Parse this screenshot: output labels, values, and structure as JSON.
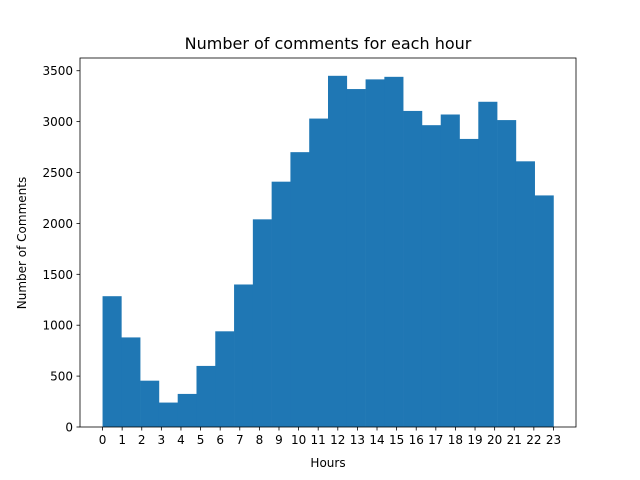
{
  "chart_data": {
    "type": "bar",
    "title": "Number of comments for each hour",
    "xlabel": "Hours",
    "ylabel": "Number of Comments",
    "xlim": [
      -1.15,
      24.15
    ],
    "ylim": [
      0,
      3625
    ],
    "xticks": [
      0,
      1,
      2,
      3,
      4,
      5,
      6,
      7,
      8,
      9,
      10,
      11,
      12,
      13,
      14,
      15,
      16,
      17,
      18,
      19,
      20,
      21,
      22,
      23
    ],
    "xtick_labels": [
      "0",
      "1",
      "2",
      "3",
      "4",
      "5",
      "6",
      "7",
      "8",
      "9",
      "10",
      "11",
      "12",
      "13",
      "14",
      "15",
      "16",
      "17",
      "18",
      "19",
      "20",
      "21",
      "22",
      "23"
    ],
    "yticks": [
      0,
      500,
      1000,
      1500,
      2000,
      2500,
      3000,
      3500
    ],
    "ytick_labels": [
      "0",
      "500",
      "1000",
      "1500",
      "2000",
      "2500",
      "3000",
      "3500"
    ],
    "bin_edges": [
      0,
      0.9583,
      1.9167,
      2.875,
      3.8333,
      4.7917,
      5.75,
      6.7083,
      7.6667,
      8.625,
      9.5833,
      10.5417,
      11.5,
      12.4583,
      13.4167,
      14.375,
      15.3333,
      16.2917,
      17.25,
      18.2083,
      19.1667,
      20.125,
      21.0833,
      22.0417,
      23
    ],
    "values": [
      1285,
      880,
      455,
      240,
      325,
      600,
      940,
      1400,
      2040,
      2410,
      2700,
      3030,
      3450,
      3320,
      3415,
      3440,
      3105,
      2965,
      3070,
      2830,
      3195,
      3015,
      2610,
      2275
    ],
    "bar_color": "#1f77b4",
    "grid": false,
    "legend": "none"
  }
}
